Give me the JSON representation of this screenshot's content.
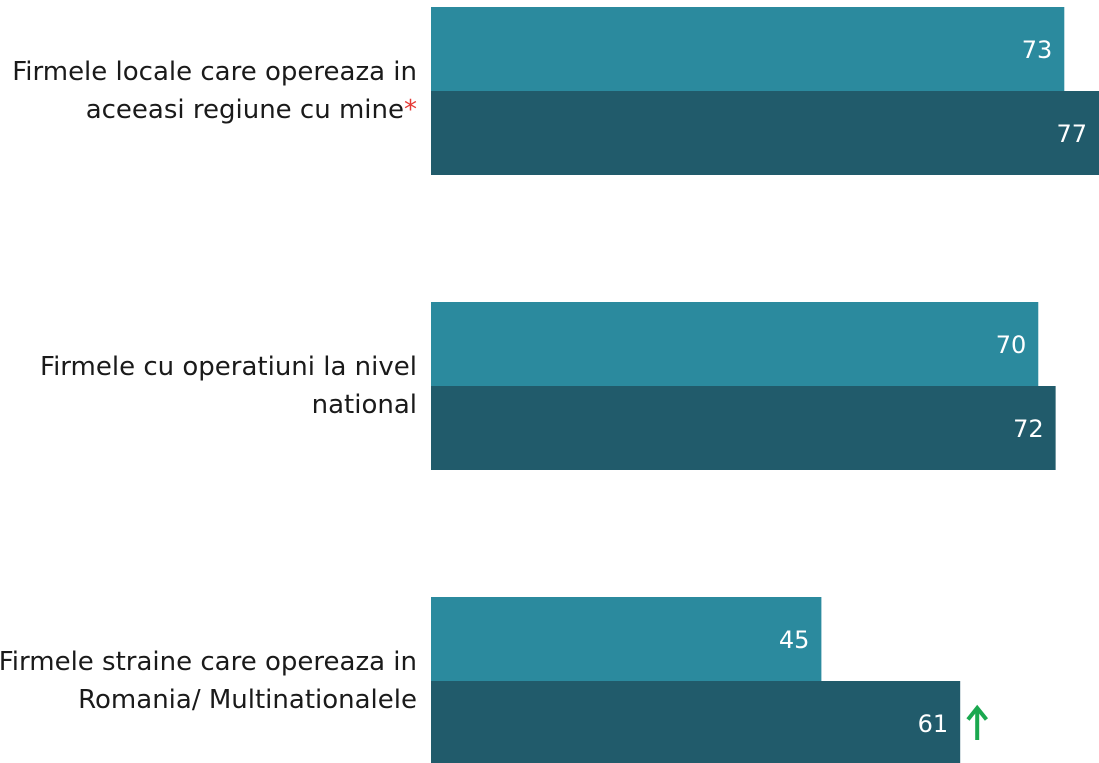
{
  "chart_data": {
    "type": "bar",
    "orientation": "horizontal",
    "categories": [
      [
        "Firmele locale care opereaza in",
        "aceeasi regiune cu mine"
      ],
      [
        "Firmele cu operatiuni la nivel",
        "national"
      ],
      [
        "Firmele straine care opereaza in",
        "Romania/ Multinationalele"
      ]
    ],
    "category_markers": [
      "*",
      "",
      ""
    ],
    "series": [
      {
        "values": [
          73,
          70,
          45
        ],
        "color": "#2b8a9e"
      },
      {
        "values": [
          77,
          72,
          61
        ],
        "color": "#215b6b"
      }
    ],
    "data_labels": [
      [
        "73",
        "70",
        "45"
      ],
      [
        "77",
        "72",
        "61"
      ]
    ],
    "annotations": [
      {
        "category_index": 2,
        "series_index": 1,
        "icon": "up-arrow-icon",
        "color": "#1aa84f"
      }
    ],
    "xlim": [
      0,
      77
    ],
    "grid": false,
    "legend": "none"
  }
}
